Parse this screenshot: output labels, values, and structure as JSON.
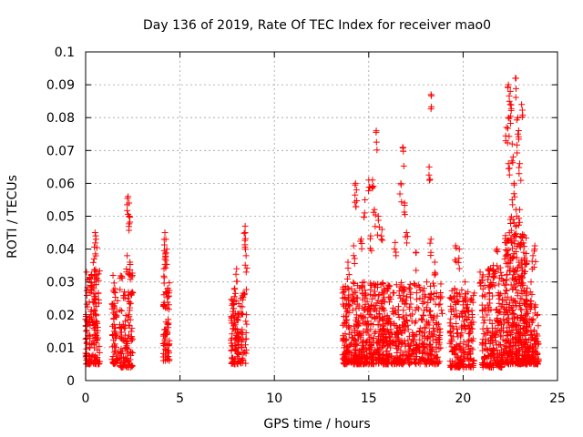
{
  "chart_data": {
    "type": "scatter",
    "title": "Day 136 of 2019, Rate Of TEC Index for receiver mao0",
    "xlabel": "GPS time / hours",
    "ylabel": "ROTI / TECUs",
    "xlim": [
      0,
      25
    ],
    "ylim": [
      0,
      0.1
    ],
    "xticks": [
      0,
      5,
      10,
      15,
      20,
      25
    ],
    "yticks": [
      0,
      0.01,
      0.02,
      0.03,
      0.04,
      0.05,
      0.06,
      0.07,
      0.08,
      0.09,
      0.1
    ],
    "grid": true,
    "marker": "+",
    "series_color": "#ff0000",
    "clusters": [
      {
        "x": [
          0.0,
          0.75
        ],
        "y": [
          0.005,
          0.034
        ],
        "n": 170,
        "pmax": [
          [
            0.5,
            0.045
          ],
          [
            0.55,
            0.043
          ],
          [
            0.45,
            0.037
          ],
          [
            0.3,
            0.032
          ]
        ]
      },
      {
        "x": [
          1.4,
          1.75
        ],
        "y": [
          0.005,
          0.025
        ],
        "n": 55,
        "pmax": [
          [
            1.45,
            0.032
          ],
          [
            1.55,
            0.028
          ]
        ]
      },
      {
        "x": [
          1.8,
          2.5
        ],
        "y": [
          0.004,
          0.034
        ],
        "n": 120,
        "pmax": [
          [
            2.25,
            0.056
          ],
          [
            2.3,
            0.054
          ],
          [
            2.3,
            0.05
          ],
          [
            2.2,
            0.038
          ],
          [
            2.35,
            0.036
          ]
        ]
      },
      {
        "x": [
          4.1,
          4.45
        ],
        "y": [
          0.006,
          0.032
        ],
        "n": 70,
        "pmax": [
          [
            4.2,
            0.045
          ],
          [
            4.25,
            0.043
          ],
          [
            4.3,
            0.04
          ],
          [
            4.2,
            0.037
          ]
        ]
      },
      {
        "x": [
          7.7,
          8.15
        ],
        "y": [
          0.005,
          0.025
        ],
        "n": 95,
        "pmax": [
          [
            8.0,
            0.034
          ],
          [
            7.9,
            0.028
          ]
        ]
      },
      {
        "x": [
          8.2,
          8.55
        ],
        "y": [
          0.005,
          0.028
        ],
        "n": 45,
        "pmax": [
          [
            8.45,
            0.047
          ],
          [
            8.45,
            0.045
          ],
          [
            8.5,
            0.038
          ]
        ]
      },
      {
        "x": [
          13.6,
          16.0
        ],
        "y": [
          0.005,
          0.03
        ],
        "n": 480,
        "pmax": [
          [
            14.3,
            0.06
          ],
          [
            14.35,
            0.058
          ],
          [
            15.4,
            0.076
          ],
          [
            15.2,
            0.061
          ],
          [
            15.0,
            0.061
          ],
          [
            15.3,
            0.052
          ],
          [
            15.5,
            0.05
          ],
          [
            15.7,
            0.046
          ],
          [
            14.8,
            0.055
          ],
          [
            15.1,
            0.044
          ],
          [
            14.6,
            0.043
          ],
          [
            14.2,
            0.041
          ],
          [
            13.9,
            0.036
          ]
        ]
      },
      {
        "x": [
          16.0,
          18.9
        ],
        "y": [
          0.005,
          0.03
        ],
        "n": 420,
        "pmax": [
          [
            16.8,
            0.071
          ],
          [
            16.7,
            0.06
          ],
          [
            16.9,
            0.054
          ],
          [
            17.0,
            0.045
          ],
          [
            18.3,
            0.087
          ],
          [
            18.2,
            0.065
          ],
          [
            18.3,
            0.043
          ],
          [
            17.5,
            0.039
          ],
          [
            16.4,
            0.042
          ],
          [
            18.5,
            0.036
          ]
        ]
      },
      {
        "x": [
          19.3,
          20.6
        ],
        "y": [
          0.004,
          0.028
        ],
        "n": 220,
        "pmax": [
          [
            19.6,
            0.041
          ],
          [
            19.8,
            0.04
          ],
          [
            20.1,
            0.03
          ],
          [
            20.9,
            0.033
          ]
        ]
      },
      {
        "x": [
          21.0,
          22.2
        ],
        "y": [
          0.004,
          0.035
        ],
        "n": 230,
        "pmax": [
          [
            21.6,
            0.035
          ],
          [
            21.4,
            0.029
          ],
          [
            21.8,
            0.04
          ]
        ]
      },
      {
        "x": [
          22.2,
          23.4
        ],
        "y": [
          0.005,
          0.045
        ],
        "n": 380,
        "pmax": [
          [
            22.4,
            0.09
          ],
          [
            22.5,
            0.088
          ],
          [
            22.5,
            0.084
          ],
          [
            22.4,
            0.08
          ],
          [
            22.3,
            0.077
          ],
          [
            22.6,
            0.072
          ],
          [
            22.8,
            0.092
          ],
          [
            22.9,
            0.08
          ],
          [
            22.9,
            0.075
          ],
          [
            23.0,
            0.066
          ],
          [
            23.1,
            0.084
          ],
          [
            22.4,
            0.066
          ],
          [
            22.7,
            0.06
          ],
          [
            22.6,
            0.055
          ],
          [
            22.8,
            0.052
          ],
          [
            23.0,
            0.052
          ],
          [
            22.5,
            0.049
          ],
          [
            22.7,
            0.048
          ]
        ]
      },
      {
        "x": [
          23.3,
          24.0
        ],
        "y": [
          0.005,
          0.025
        ],
        "n": 140,
        "pmax": [
          [
            23.8,
            0.041
          ],
          [
            23.7,
            0.038
          ],
          [
            23.6,
            0.03
          ]
        ]
      }
    ]
  }
}
